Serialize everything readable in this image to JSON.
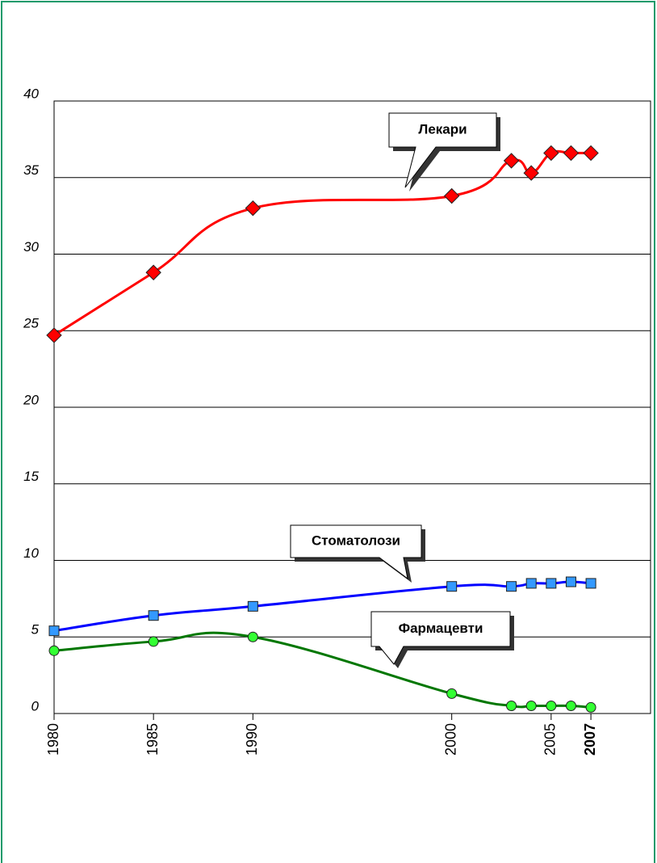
{
  "chart_data": {
    "type": "line",
    "x": [
      1980,
      1985,
      1990,
      2000,
      2003,
      2004,
      2005,
      2006,
      2007
    ],
    "series": [
      {
        "name": "Лекари",
        "color": "#ff0000",
        "marker": "diamond",
        "values": [
          24.7,
          28.8,
          33.0,
          33.8,
          36.1,
          35.3,
          36.6,
          36.6,
          36.6
        ]
      },
      {
        "name": "Стоматолози",
        "color": "#0000ff",
        "marker": "square",
        "values": [
          5.4,
          6.4,
          7.0,
          8.3,
          8.3,
          8.5,
          8.5,
          8.6,
          8.5
        ]
      },
      {
        "name": "Фармацевти",
        "color": "#007700",
        "marker": "circle",
        "values": [
          4.1,
          4.7,
          5.0,
          1.3,
          0.5,
          0.5,
          0.5,
          0.5,
          0.4
        ]
      }
    ],
    "xlim": [
      1980,
      2010
    ],
    "xticks": [
      1980,
      1985,
      1990,
      2000,
      2005,
      2007
    ],
    "ylim": [
      0,
      40
    ],
    "yticks": [
      0,
      5,
      10,
      15,
      20,
      25,
      30,
      35,
      40
    ],
    "grid": true
  }
}
